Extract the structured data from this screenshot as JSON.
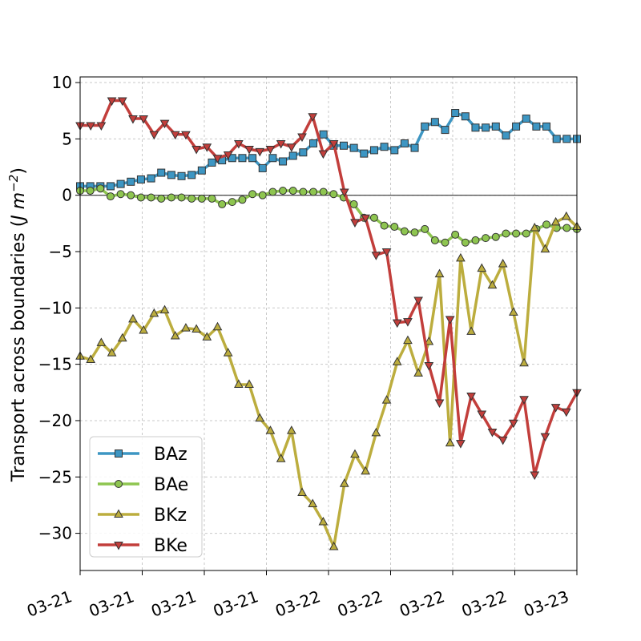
{
  "chart_data": {
    "type": "line",
    "ylabel": "Transport across boundaries (J m^-2)",
    "ylabel_parts": [
      "Transport across boundaries (",
      "J m",
      "−2",
      ")"
    ],
    "ylim": [
      -33.3,
      10.5
    ],
    "xlim": [
      0,
      64
    ],
    "yticks": [
      10,
      5,
      0,
      -5,
      -10,
      -15,
      -20,
      -25,
      -30
    ],
    "ytick_labels": [
      "10",
      "5",
      "0",
      "−5",
      "−10",
      "−15",
      "−20",
      "−25",
      "−30"
    ],
    "xticks": [
      0,
      8,
      16,
      24,
      32,
      40,
      48,
      56,
      64
    ],
    "xtick_labels": [
      "03-21",
      "03-21",
      "03-21",
      "03-21",
      "03-22",
      "03-22",
      "03-22",
      "03-22",
      "03-23"
    ],
    "grid": true,
    "zero_line": true,
    "legend_position": "lower-left",
    "series": [
      {
        "name": "BAz",
        "color": "#3d96c3",
        "marker": "square",
        "values": [
          0.8,
          0.8,
          0.8,
          0.8,
          1.0,
          1.2,
          1.4,
          1.5,
          2.0,
          1.8,
          1.7,
          1.8,
          2.2,
          2.9,
          3.1,
          3.3,
          3.3,
          3.3,
          2.4,
          3.3,
          3.0,
          3.5,
          3.8,
          4.6,
          5.4,
          4.4,
          4.4,
          4.2,
          3.7,
          4.0,
          4.3,
          4.0,
          4.6,
          4.2,
          6.1,
          6.5,
          5.8,
          7.3,
          7.0,
          6.0,
          6.0,
          6.1,
          5.3,
          6.1,
          6.8,
          6.1,
          6.1,
          5.0,
          5.0,
          5.0
        ]
      },
      {
        "name": "BAe",
        "color": "#8ec550",
        "marker": "circle",
        "values": [
          0.4,
          0.4,
          0.6,
          -0.1,
          0.1,
          0.0,
          -0.2,
          -0.2,
          -0.3,
          -0.2,
          -0.2,
          -0.3,
          -0.3,
          -0.3,
          -0.8,
          -0.6,
          -0.4,
          0.1,
          0.0,
          0.3,
          0.4,
          0.4,
          0.3,
          0.3,
          0.3,
          0.1,
          -0.2,
          -0.8,
          -2.0,
          -2.0,
          -2.7,
          -2.8,
          -3.2,
          -3.3,
          -3.0,
          -4.0,
          -4.2,
          -3.5,
          -4.2,
          -4.0,
          -3.8,
          -3.7,
          -3.4,
          -3.4,
          -3.4,
          -3.0,
          -2.6,
          -2.9,
          -2.9,
          -3.0
        ]
      },
      {
        "name": "BKz",
        "color": "#bcad3e",
        "marker": "triangle-up",
        "values": [
          -14.3,
          -14.6,
          -13.1,
          -14.0,
          -12.7,
          -11.0,
          -12.0,
          -10.5,
          -10.2,
          -12.5,
          -11.8,
          -11.9,
          -12.6,
          -11.7,
          -14.0,
          -16.8,
          -16.8,
          -19.8,
          -20.9,
          -23.4,
          -20.9,
          -26.4,
          -27.4,
          -29.0,
          -31.2,
          -25.6,
          -23.0,
          -24.5,
          -21.1,
          -18.2,
          -14.8,
          -12.9,
          -15.8,
          -13.0,
          -7.0,
          -22.0,
          -5.6,
          -12.1,
          -6.5,
          -8.0,
          -6.1,
          -10.4,
          -14.9,
          -2.9,
          -4.8,
          -2.4,
          -1.9,
          -2.8
        ]
      },
      {
        "name": "BKe",
        "color": "#c23e3b",
        "marker": "triangle-down",
        "values": [
          6.2,
          6.2,
          6.2,
          8.4,
          8.4,
          6.8,
          6.8,
          5.4,
          6.4,
          5.4,
          5.4,
          4.1,
          4.3,
          3.3,
          3.6,
          4.6,
          4.1,
          3.9,
          4.1,
          4.6,
          4.3,
          5.2,
          7.0,
          3.7,
          4.6,
          0.3,
          -2.4,
          -2.0,
          -5.3,
          -5.0,
          -11.3,
          -11.2,
          -9.3,
          -15.1,
          -18.4,
          -11.0,
          -22.0,
          -17.8,
          -19.4,
          -21.0,
          -21.7,
          -20.2,
          -18.1,
          -24.8,
          -21.4,
          -18.8,
          -19.2,
          -17.5
        ]
      }
    ]
  }
}
